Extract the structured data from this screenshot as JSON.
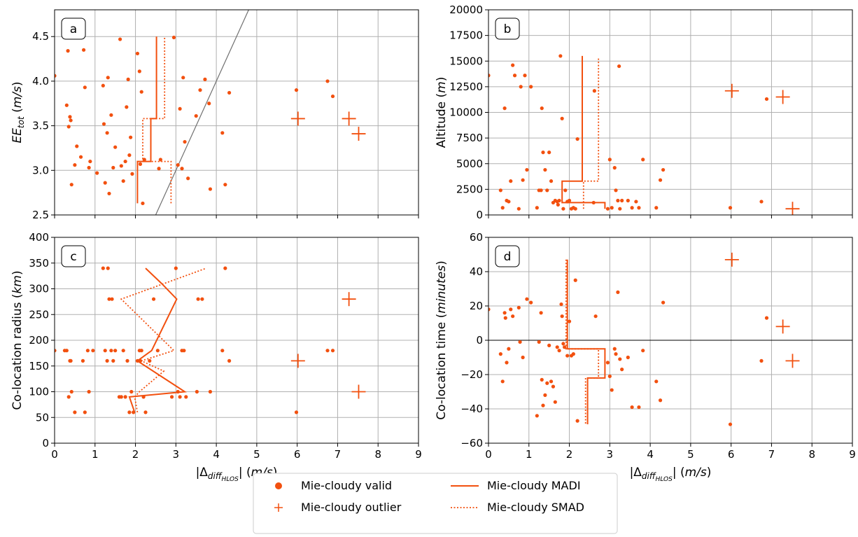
{
  "colors": {
    "series": "#f2500f",
    "diagonal": "#707070",
    "grid": "#b0b0b0",
    "zero": "#000000"
  },
  "legend": {
    "items": [
      {
        "label": "Mie-cloudy valid",
        "marker": "dot"
      },
      {
        "label": "Mie-cloudy outlier",
        "marker": "plus"
      },
      {
        "label": "Mie-cloudy MADI",
        "marker": "solid"
      },
      {
        "label": "Mie-cloudy SMAD",
        "marker": "dotted"
      }
    ]
  },
  "chart_data": [
    {
      "type": "scatter",
      "panel_label": "a",
      "xlim": [
        0,
        9
      ],
      "ylim": [
        2.5,
        4.8
      ],
      "xticks": [
        0,
        1,
        2,
        3,
        4,
        5,
        6,
        7,
        8,
        9
      ],
      "yticks": [
        2.5,
        3.0,
        3.5,
        4.0,
        4.5
      ],
      "ytick_labels": [
        "2.5",
        "3.0",
        "3.5",
        "4.0",
        "4.5"
      ],
      "xlabel": "",
      "ylabel_main": "EE",
      "ylabel_sub": "tot",
      "ylabel_unit": " (m/s)",
      "grid": true,
      "diagonal": [
        [
          2.5,
          2.5
        ],
        [
          4.8,
          4.8
        ]
      ],
      "valid": [
        [
          0,
          4.06
        ],
        [
          0.3,
          3.73
        ],
        [
          0.33,
          4.34
        ],
        [
          0.35,
          3.49
        ],
        [
          0.38,
          3.6
        ],
        [
          0.4,
          3.56
        ],
        [
          0.42,
          2.84
        ],
        [
          0.5,
          3.06
        ],
        [
          0.55,
          3.27
        ],
        [
          0.65,
          3.15
        ],
        [
          0.72,
          4.35
        ],
        [
          0.75,
          3.93
        ],
        [
          0.85,
          3.03
        ],
        [
          0.88,
          3.1
        ],
        [
          1.05,
          2.97
        ],
        [
          1.2,
          3.95
        ],
        [
          1.22,
          3.52
        ],
        [
          1.25,
          2.86
        ],
        [
          1.3,
          3.42
        ],
        [
          1.32,
          4.04
        ],
        [
          1.35,
          2.74
        ],
        [
          1.4,
          3.62
        ],
        [
          1.45,
          3.03
        ],
        [
          1.5,
          3.26
        ],
        [
          1.62,
          4.47
        ],
        [
          1.65,
          3.05
        ],
        [
          1.7,
          2.88
        ],
        [
          1.75,
          3.1
        ],
        [
          1.78,
          3.71
        ],
        [
          1.82,
          4.02
        ],
        [
          1.85,
          3.17
        ],
        [
          1.88,
          3.37
        ],
        [
          1.92,
          2.96
        ],
        [
          2.05,
          4.31
        ],
        [
          2.1,
          4.11
        ],
        [
          2.12,
          3.07
        ],
        [
          2.15,
          3.88
        ],
        [
          2.18,
          2.63
        ],
        [
          2.22,
          3.12
        ],
        [
          2.58,
          3.02
        ],
        [
          2.62,
          3.12
        ],
        [
          2.95,
          4.49
        ],
        [
          3.05,
          3.06
        ],
        [
          3.1,
          3.69
        ],
        [
          3.15,
          3.02
        ],
        [
          3.18,
          4.04
        ],
        [
          3.22,
          3.32
        ],
        [
          3.3,
          2.91
        ],
        [
          3.5,
          3.61
        ],
        [
          3.6,
          3.9
        ],
        [
          3.72,
          4.02
        ],
        [
          3.82,
          3.75
        ],
        [
          3.85,
          2.79
        ],
        [
          4.15,
          3.42
        ],
        [
          4.22,
          2.84
        ],
        [
          4.32,
          3.87
        ],
        [
          5.98,
          3.9
        ],
        [
          6.75,
          4.0
        ],
        [
          6.88,
          3.83
        ]
      ],
      "outliers": [
        [
          6.02,
          3.58
        ],
        [
          7.28,
          3.58
        ],
        [
          7.52,
          3.41
        ]
      ],
      "madi": [
        [
          2.05,
          2.63
        ],
        [
          2.05,
          3.1
        ],
        [
          2.38,
          3.1
        ],
        [
          2.38,
          3.58
        ],
        [
          2.52,
          3.58
        ],
        [
          2.52,
          4.5
        ]
      ],
      "smad": [
        [
          2.88,
          2.63
        ],
        [
          2.88,
          3.1
        ],
        [
          2.18,
          3.1
        ],
        [
          2.18,
          3.58
        ],
        [
          2.72,
          3.58
        ],
        [
          2.72,
          4.5
        ]
      ]
    },
    {
      "type": "scatter",
      "panel_label": "b",
      "xlim": [
        0,
        9
      ],
      "ylim": [
        0,
        20000
      ],
      "xticks": [
        0,
        1,
        2,
        3,
        4,
        5,
        6,
        7,
        8,
        9
      ],
      "yticks": [
        0,
        2500,
        5000,
        7500,
        10000,
        12500,
        15000,
        17500,
        20000
      ],
      "ytick_labels": [
        "0",
        "2500",
        "5000",
        "7500",
        "10000",
        "12500",
        "15000",
        "17500",
        "20000"
      ],
      "xlabel": "",
      "ylabel_main": "Altitude",
      "ylabel_sub": "",
      "ylabel_unit": " (m)",
      "grid": true,
      "valid": [
        [
          0,
          13600
        ],
        [
          0.3,
          2400
        ],
        [
          0.35,
          700
        ],
        [
          0.4,
          10400
        ],
        [
          0.45,
          1400
        ],
        [
          0.5,
          1300
        ],
        [
          0.55,
          3300
        ],
        [
          0.6,
          14600
        ],
        [
          0.65,
          13600
        ],
        [
          0.75,
          600
        ],
        [
          0.8,
          12500
        ],
        [
          0.85,
          3400
        ],
        [
          0.9,
          13600
        ],
        [
          0.95,
          4400
        ],
        [
          1.05,
          12500
        ],
        [
          1.2,
          700
        ],
        [
          1.25,
          2400
        ],
        [
          1.3,
          2400
        ],
        [
          1.32,
          10400
        ],
        [
          1.35,
          6100
        ],
        [
          1.4,
          4400
        ],
        [
          1.45,
          2400
        ],
        [
          1.5,
          6100
        ],
        [
          1.55,
          3300
        ],
        [
          1.6,
          1200
        ],
        [
          1.65,
          1400
        ],
        [
          1.7,
          1300
        ],
        [
          1.72,
          1000
        ],
        [
          1.75,
          1400
        ],
        [
          1.78,
          15500
        ],
        [
          1.82,
          9400
        ],
        [
          1.85,
          600
        ],
        [
          1.9,
          2400
        ],
        [
          1.95,
          1300
        ],
        [
          2.0,
          1400
        ],
        [
          2.05,
          600
        ],
        [
          2.1,
          700
        ],
        [
          2.15,
          600
        ],
        [
          2.2,
          7400
        ],
        [
          2.6,
          1200
        ],
        [
          2.62,
          12100
        ],
        [
          2.95,
          600
        ],
        [
          3.0,
          5400
        ],
        [
          3.05,
          700
        ],
        [
          3.12,
          4600
        ],
        [
          3.15,
          2400
        ],
        [
          3.2,
          1400
        ],
        [
          3.25,
          600
        ],
        [
          3.3,
          1400
        ],
        [
          3.45,
          1400
        ],
        [
          3.55,
          700
        ],
        [
          3.65,
          1300
        ],
        [
          3.72,
          700
        ],
        [
          3.82,
          5400
        ],
        [
          4.15,
          700
        ],
        [
          4.25,
          3400
        ],
        [
          4.32,
          4400
        ],
        [
          5.98,
          700
        ],
        [
          6.75,
          1300
        ],
        [
          6.88,
          11300
        ],
        [
          3.23,
          14500
        ]
      ],
      "outliers": [
        [
          6.02,
          12100
        ],
        [
          7.28,
          11500
        ],
        [
          7.52,
          600
        ]
      ],
      "madi": [
        [
          1.82,
          1200
        ],
        [
          1.82,
          3300
        ],
        [
          2.32,
          3300
        ],
        [
          2.32,
          15500
        ],
        [
          2.32,
          3300
        ],
        [
          1.82,
          3300
        ],
        [
          1.82,
          1200
        ],
        [
          2.88,
          1200
        ],
        [
          2.88,
          600
        ]
      ],
      "smad": [
        [
          2.35,
          600
        ],
        [
          2.35,
          3300
        ],
        [
          2.72,
          3300
        ],
        [
          2.72,
          15300
        ]
      ]
    },
    {
      "type": "scatter",
      "panel_label": "c",
      "xlim": [
        0,
        9
      ],
      "ylim": [
        0,
        400
      ],
      "xticks": [
        0,
        1,
        2,
        3,
        4,
        5,
        6,
        7,
        8,
        9
      ],
      "xtick_labels": [
        "0",
        "1",
        "2",
        "3",
        "4",
        "5",
        "6",
        "7",
        "8",
        "9"
      ],
      "yticks": [
        0,
        50,
        100,
        150,
        200,
        250,
        300,
        350,
        400
      ],
      "ytick_labels": [
        "0",
        "50",
        "100",
        "150",
        "200",
        "250",
        "300",
        "350",
        "400"
      ],
      "xlabel_main": "|Δ",
      "xlabel_sub": "diff",
      "xlabel_subsub": "HLOS",
      "xlabel_end": "| (m/s)",
      "ylabel_main": "Co-location radius",
      "ylabel_sub": "",
      "ylabel_unit": " (km)",
      "grid": true,
      "valid": [
        [
          0,
          180
        ],
        [
          0.25,
          180
        ],
        [
          0.3,
          180
        ],
        [
          0.35,
          90
        ],
        [
          0.38,
          160
        ],
        [
          0.4,
          160
        ],
        [
          0.42,
          100
        ],
        [
          0.5,
          60
        ],
        [
          0.7,
          160
        ],
        [
          0.75,
          60
        ],
        [
          0.82,
          180
        ],
        [
          0.85,
          100
        ],
        [
          0.95,
          180
        ],
        [
          1.2,
          340
        ],
        [
          1.25,
          180
        ],
        [
          1.3,
          160
        ],
        [
          1.32,
          340
        ],
        [
          1.35,
          280
        ],
        [
          1.4,
          180
        ],
        [
          1.42,
          280
        ],
        [
          1.45,
          160
        ],
        [
          1.5,
          180
        ],
        [
          1.6,
          90
        ],
        [
          1.65,
          90
        ],
        [
          1.7,
          180
        ],
        [
          1.75,
          90
        ],
        [
          1.8,
          160
        ],
        [
          1.85,
          60
        ],
        [
          1.9,
          100
        ],
        [
          1.95,
          60
        ],
        [
          2.05,
          160
        ],
        [
          2.1,
          180
        ],
        [
          2.12,
          160
        ],
        [
          2.15,
          180
        ],
        [
          2.2,
          90
        ],
        [
          2.25,
          60
        ],
        [
          2.35,
          160
        ],
        [
          2.45,
          280
        ],
        [
          2.55,
          180
        ],
        [
          2.9,
          90
        ],
        [
          3.0,
          340
        ],
        [
          3.05,
          100
        ],
        [
          3.1,
          90
        ],
        [
          3.15,
          180
        ],
        [
          3.2,
          180
        ],
        [
          3.25,
          90
        ],
        [
          3.55,
          280
        ],
        [
          3.65,
          280
        ],
        [
          3.85,
          100
        ],
        [
          4.15,
          180
        ],
        [
          4.22,
          340
        ],
        [
          4.32,
          160
        ],
        [
          5.98,
          60
        ],
        [
          6.75,
          180
        ],
        [
          6.88,
          180
        ],
        [
          3.52,
          100
        ]
      ],
      "outliers": [
        [
          6.02,
          160
        ],
        [
          7.28,
          280
        ],
        [
          7.52,
          100
        ]
      ],
      "madi": [
        [
          1.98,
          60
        ],
        [
          1.85,
          90
        ],
        [
          3.22,
          100
        ],
        [
          2.05,
          160
        ],
        [
          2.4,
          180
        ],
        [
          3.02,
          280
        ],
        [
          2.65,
          310
        ],
        [
          2.25,
          340
        ]
      ],
      "smad": [
        [
          2.05,
          60
        ],
        [
          1.98,
          90
        ],
        [
          2.1,
          100
        ],
        [
          2.7,
          140
        ],
        [
          2.15,
          160
        ],
        [
          2.95,
          180
        ],
        [
          1.65,
          280
        ],
        [
          3.75,
          340
        ]
      ]
    },
    {
      "type": "scatter",
      "panel_label": "d",
      "xlim": [
        0,
        9
      ],
      "ylim": [
        -60,
        60
      ],
      "xticks": [
        0,
        1,
        2,
        3,
        4,
        5,
        6,
        7,
        8,
        9
      ],
      "xtick_labels": [
        "0",
        "1",
        "2",
        "3",
        "4",
        "5",
        "6",
        "7",
        "8",
        "9"
      ],
      "yticks": [
        -60,
        -40,
        -20,
        0,
        20,
        40,
        60
      ],
      "ytick_labels": [
        "−60",
        "−40",
        "−20",
        "0",
        "20",
        "40",
        "60"
      ],
      "xlabel_main": "|Δ",
      "xlabel_sub": "diff",
      "xlabel_subsub": "HLOS",
      "xlabel_end": "| (m/s)",
      "ylabel_main": "Co-location time",
      "ylabel_sub": "",
      "ylabel_unit": " (minutes)",
      "grid": true,
      "zero_line": true,
      "valid": [
        [
          0,
          18
        ],
        [
          0.3,
          -8
        ],
        [
          0.35,
          -24
        ],
        [
          0.4,
          16
        ],
        [
          0.42,
          13
        ],
        [
          0.45,
          -13
        ],
        [
          0.5,
          -5
        ],
        [
          0.55,
          18
        ],
        [
          0.6,
          14
        ],
        [
          0.75,
          19
        ],
        [
          0.78,
          -1
        ],
        [
          0.85,
          -10
        ],
        [
          0.95,
          24
        ],
        [
          1.05,
          22
        ],
        [
          1.2,
          -44
        ],
        [
          1.25,
          -1
        ],
        [
          1.3,
          16
        ],
        [
          1.32,
          -23
        ],
        [
          1.35,
          -38
        ],
        [
          1.4,
          -32
        ],
        [
          1.45,
          -25
        ],
        [
          1.5,
          -3
        ],
        [
          1.55,
          -24
        ],
        [
          1.6,
          -27
        ],
        [
          1.65,
          -36
        ],
        [
          1.7,
          -4
        ],
        [
          1.75,
          -6
        ],
        [
          1.8,
          21
        ],
        [
          1.82,
          14
        ],
        [
          1.85,
          -2
        ],
        [
          1.88,
          -4
        ],
        [
          1.95,
          -9
        ],
        [
          2.0,
          11
        ],
        [
          2.05,
          -9
        ],
        [
          2.1,
          -8
        ],
        [
          2.15,
          35
        ],
        [
          2.2,
          -47
        ],
        [
          2.65,
          14
        ],
        [
          2.95,
          -13
        ],
        [
          3.0,
          -21
        ],
        [
          3.05,
          -29
        ],
        [
          3.12,
          -5
        ],
        [
          3.15,
          -8
        ],
        [
          3.2,
          28
        ],
        [
          3.25,
          -11
        ],
        [
          3.3,
          -17
        ],
        [
          3.45,
          -10
        ],
        [
          3.55,
          -39
        ],
        [
          3.72,
          -39
        ],
        [
          3.82,
          -6
        ],
        [
          4.15,
          -24
        ],
        [
          4.25,
          -35
        ],
        [
          4.32,
          22
        ],
        [
          5.98,
          -49
        ],
        [
          6.75,
          -12
        ],
        [
          6.88,
          13
        ]
      ],
      "outliers": [
        [
          6.02,
          47
        ],
        [
          7.28,
          8
        ],
        [
          7.52,
          -12
        ]
      ],
      "madi": [
        [
          1.95,
          47
        ],
        [
          1.95,
          -5
        ],
        [
          2.88,
          -5
        ],
        [
          2.88,
          -22
        ],
        [
          2.45,
          -22
        ],
        [
          2.45,
          -49
        ]
      ],
      "smad": [
        [
          1.92,
          47
        ],
        [
          1.92,
          -5
        ],
        [
          2.72,
          -5
        ],
        [
          2.72,
          -22
        ],
        [
          2.4,
          -22
        ],
        [
          2.4,
          -49
        ]
      ]
    }
  ]
}
